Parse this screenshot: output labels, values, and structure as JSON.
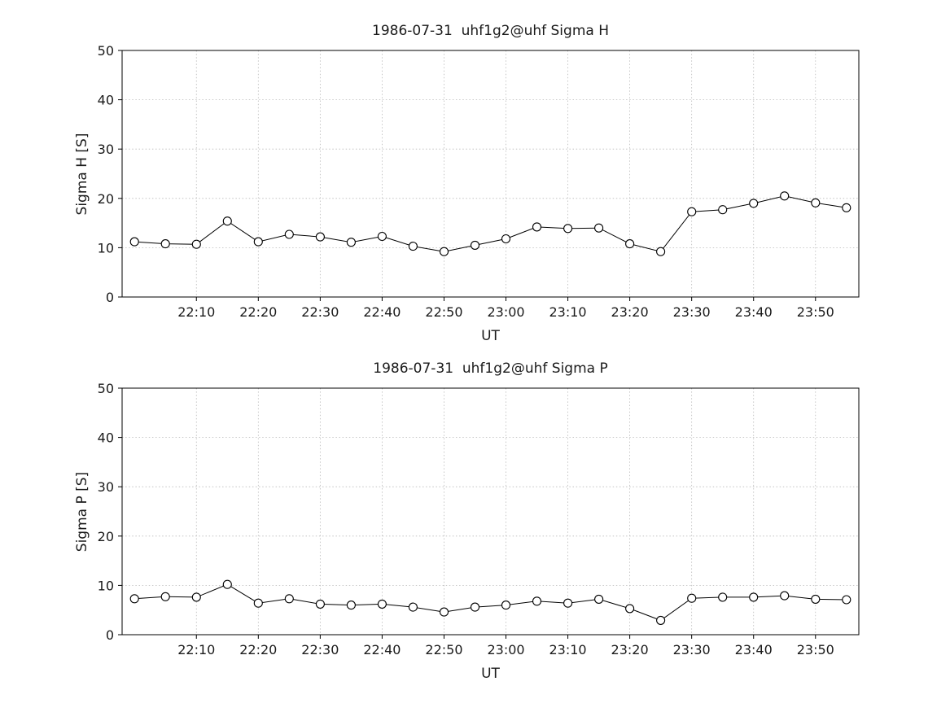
{
  "figure": {
    "background": "#ffffff",
    "text_color": "#1a1a1a",
    "grid_color": "#b9b9b9",
    "line_color": "#000000",
    "marker_fill": "#ffffff"
  },
  "chart_data": [
    {
      "type": "line",
      "title": "1986-07-31  uhf1g2@uhf Sigma H",
      "xlabel": "UT",
      "ylabel": "Sigma H [S]",
      "ylim": [
        0,
        50
      ],
      "yticks": [
        0,
        10,
        20,
        30,
        40,
        50
      ],
      "xlim": [
        "21:58",
        "23:57"
      ],
      "xticks": [
        "22:10",
        "22:20",
        "22:30",
        "22:40",
        "22:50",
        "23:00",
        "23:10",
        "23:20",
        "23:30",
        "23:40",
        "23:50"
      ],
      "grid": true,
      "legend": "none",
      "series": [
        {
          "name": "Sigma H",
          "marker": "open-circle",
          "color": "#000000",
          "x": [
            "22:00",
            "22:05",
            "22:10",
            "22:15",
            "22:20",
            "22:25",
            "22:30",
            "22:35",
            "22:40",
            "22:45",
            "22:50",
            "22:55",
            "23:00",
            "23:05",
            "23:10",
            "23:15",
            "23:20",
            "23:25",
            "23:30",
            "23:35",
            "23:40",
            "23:45",
            "23:50",
            "23:55"
          ],
          "y": [
            11.2,
            10.8,
            10.7,
            15.4,
            11.2,
            12.7,
            12.2,
            11.1,
            12.3,
            10.3,
            9.2,
            10.5,
            11.8,
            14.2,
            13.9,
            14.0,
            10.8,
            9.2,
            17.3,
            17.7,
            19.0,
            20.5,
            19.1,
            18.1
          ]
        }
      ]
    },
    {
      "type": "line",
      "title": "1986-07-31  uhf1g2@uhf Sigma P",
      "xlabel": "UT",
      "ylabel": "Sigma P [S]",
      "ylim": [
        0,
        50
      ],
      "yticks": [
        0,
        10,
        20,
        30,
        40,
        50
      ],
      "xlim": [
        "21:58",
        "23:57"
      ],
      "xticks": [
        "22:10",
        "22:20",
        "22:30",
        "22:40",
        "22:50",
        "23:00",
        "23:10",
        "23:20",
        "23:30",
        "23:40",
        "23:50"
      ],
      "grid": true,
      "legend": "none",
      "series": [
        {
          "name": "Sigma P",
          "marker": "open-circle",
          "color": "#000000",
          "x": [
            "22:00",
            "22:05",
            "22:10",
            "22:15",
            "22:20",
            "22:25",
            "22:30",
            "22:35",
            "22:40",
            "22:45",
            "22:50",
            "22:55",
            "23:00",
            "23:05",
            "23:10",
            "23:15",
            "23:20",
            "23:25",
            "23:30",
            "23:35",
            "23:40",
            "23:45",
            "23:50",
            "23:55"
          ],
          "y": [
            7.3,
            7.7,
            7.6,
            10.2,
            6.4,
            7.3,
            6.2,
            6.0,
            6.2,
            5.6,
            4.6,
            5.6,
            6.0,
            6.8,
            6.4,
            7.2,
            5.3,
            2.9,
            7.4,
            7.6,
            7.6,
            7.9,
            7.2,
            7.1
          ]
        }
      ]
    }
  ]
}
